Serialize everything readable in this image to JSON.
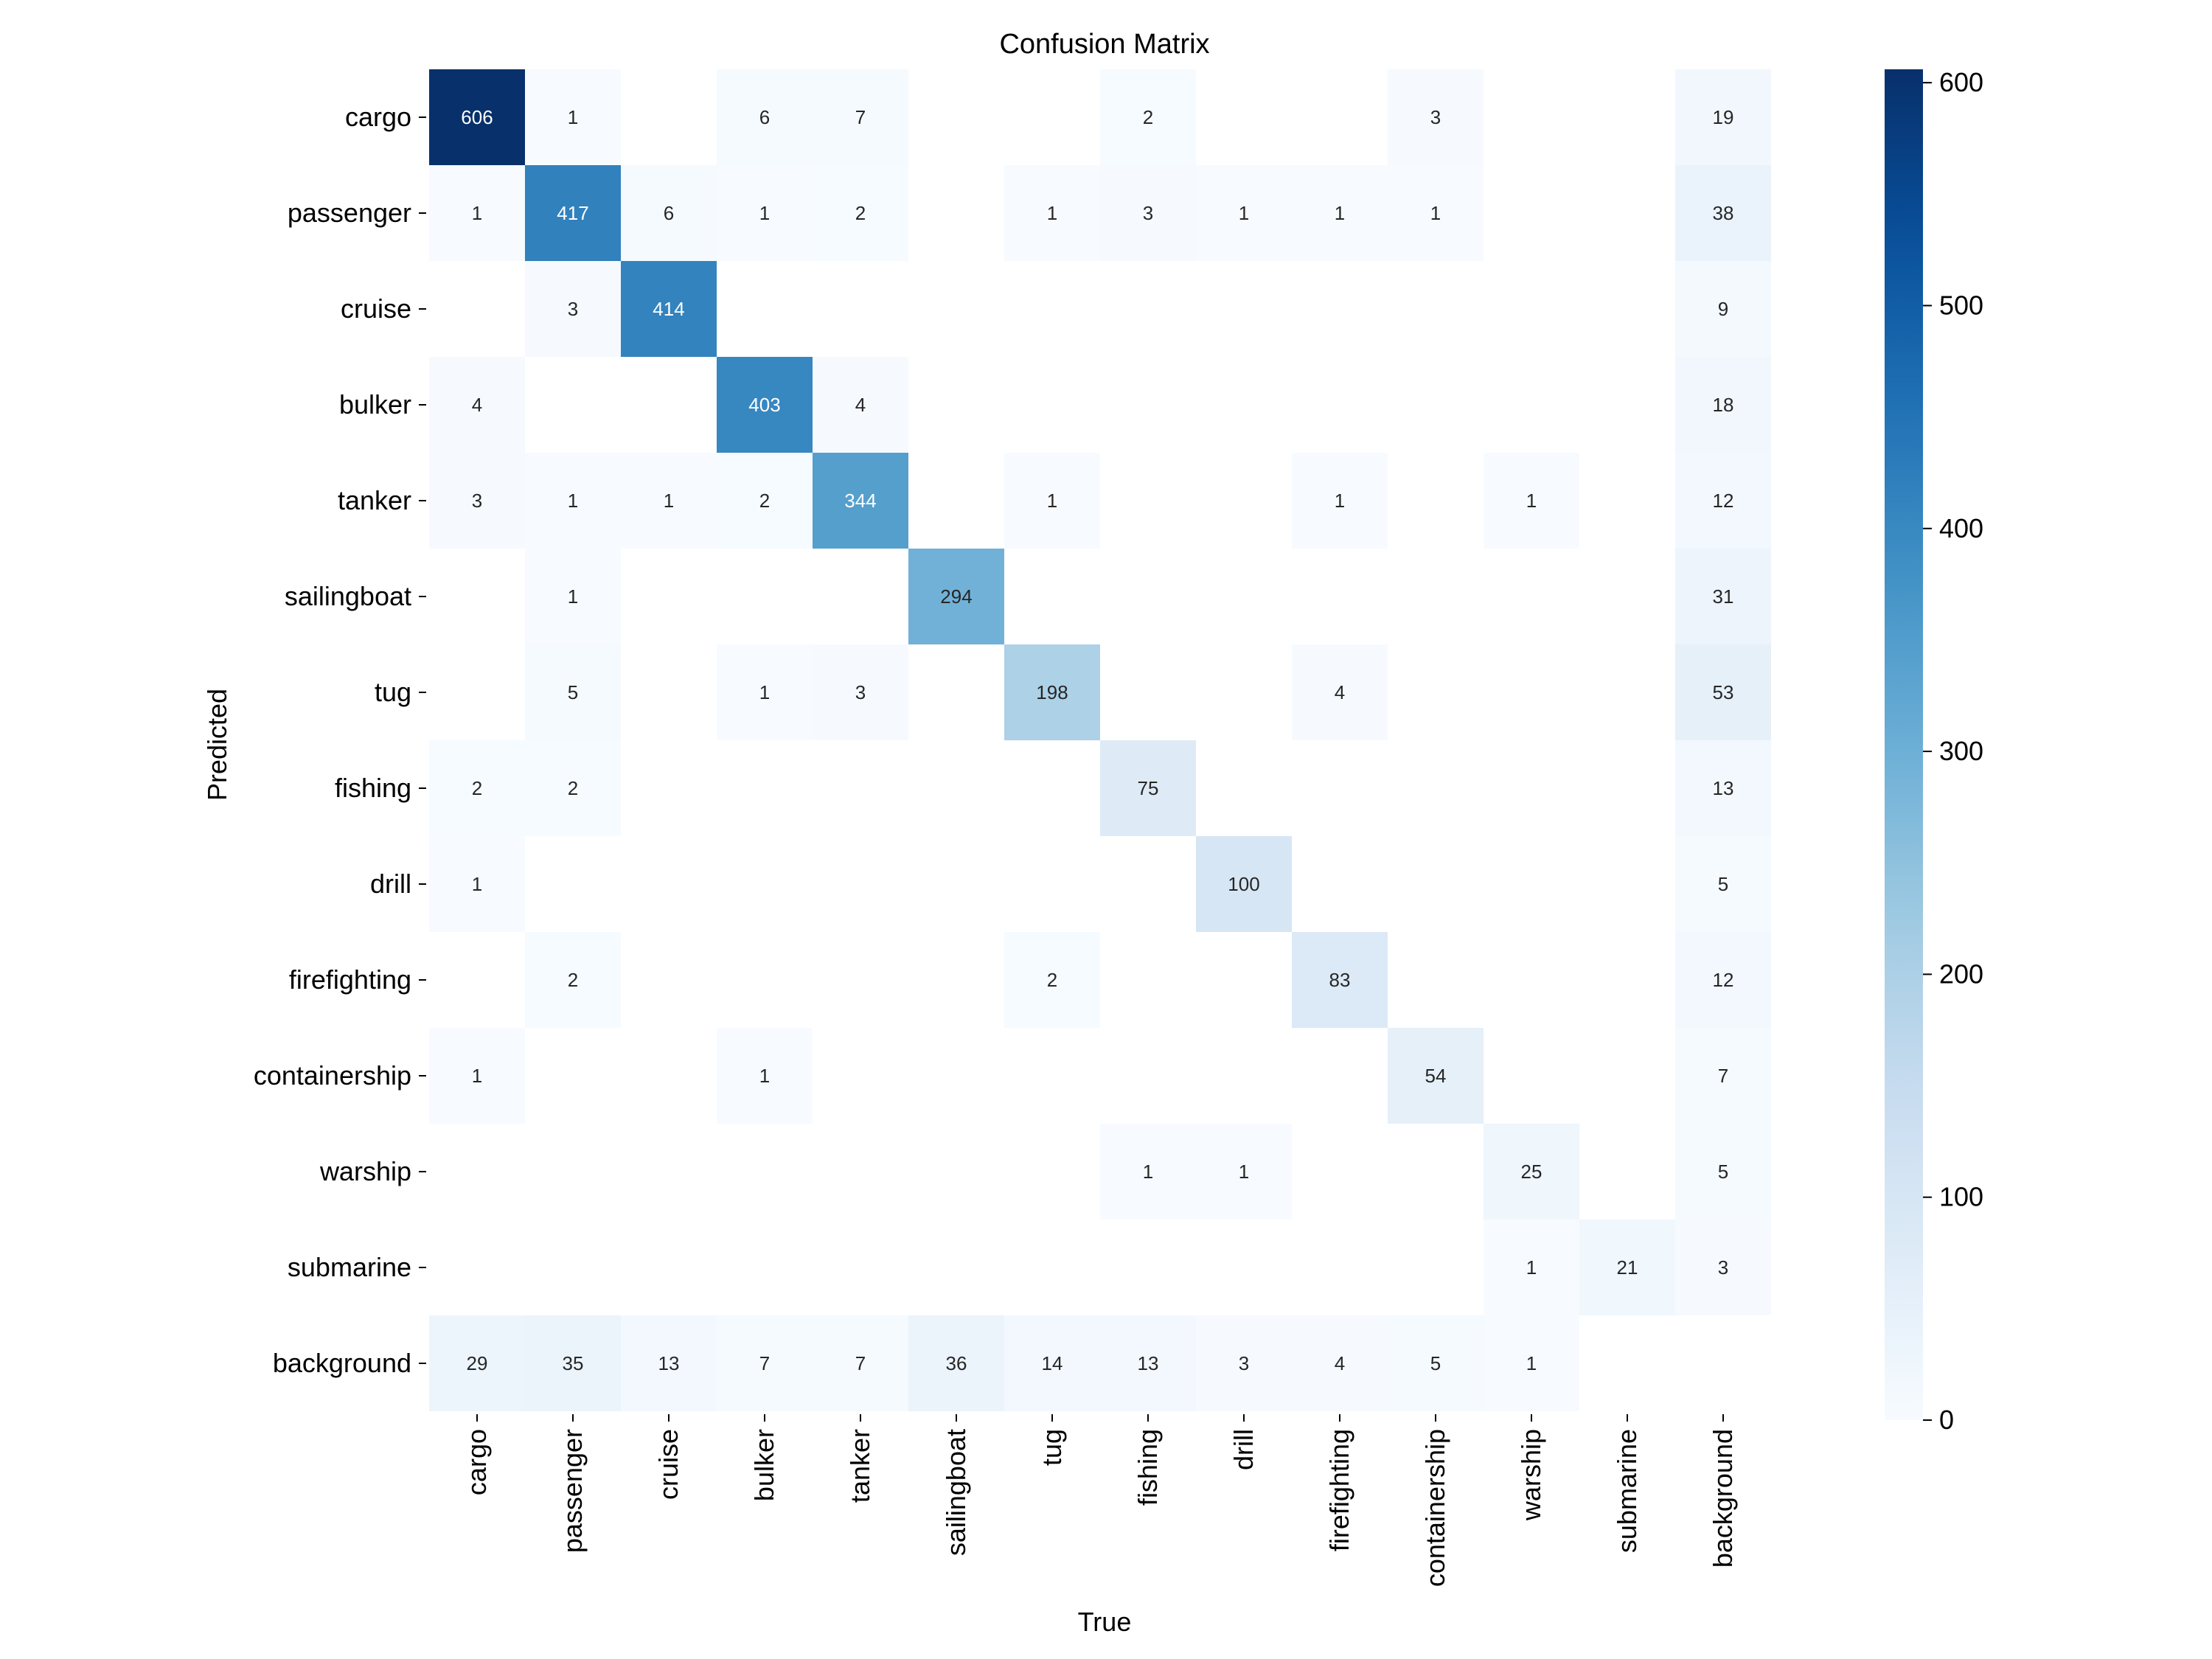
{
  "chart_data": {
    "type": "heatmap",
    "title": "Confusion Matrix",
    "xlabel": "True",
    "ylabel": "Predicted",
    "x_categories": [
      "cargo",
      "passenger",
      "cruise",
      "bulker",
      "tanker",
      "sailingboat",
      "tug",
      "fishing",
      "drill",
      "firefighting",
      "containership",
      "warship",
      "submarine",
      "background"
    ],
    "y_categories": [
      "cargo",
      "passenger",
      "cruise",
      "bulker",
      "tanker",
      "sailingboat",
      "tug",
      "fishing",
      "drill",
      "firefighting",
      "containership",
      "warship",
      "submarine",
      "background"
    ],
    "values": [
      [
        606,
        1,
        null,
        6,
        7,
        null,
        null,
        2,
        null,
        null,
        3,
        null,
        null,
        19
      ],
      [
        1,
        417,
        6,
        1,
        2,
        null,
        1,
        3,
        1,
        1,
        1,
        null,
        null,
        38
      ],
      [
        null,
        3,
        414,
        null,
        null,
        null,
        null,
        null,
        null,
        null,
        null,
        null,
        null,
        9
      ],
      [
        4,
        null,
        null,
        403,
        4,
        null,
        null,
        null,
        null,
        null,
        null,
        null,
        null,
        18
      ],
      [
        3,
        1,
        1,
        2,
        344,
        null,
        1,
        null,
        null,
        1,
        null,
        1,
        null,
        12
      ],
      [
        null,
        1,
        null,
        null,
        null,
        294,
        null,
        null,
        null,
        null,
        null,
        null,
        null,
        31
      ],
      [
        null,
        5,
        null,
        1,
        3,
        null,
        198,
        null,
        null,
        4,
        null,
        null,
        null,
        53
      ],
      [
        2,
        2,
        null,
        null,
        null,
        null,
        null,
        75,
        null,
        null,
        null,
        null,
        null,
        13
      ],
      [
        1,
        null,
        null,
        null,
        null,
        null,
        null,
        null,
        100,
        null,
        null,
        null,
        null,
        5
      ],
      [
        null,
        2,
        null,
        null,
        null,
        null,
        2,
        null,
        null,
        83,
        null,
        null,
        null,
        12
      ],
      [
        1,
        null,
        null,
        1,
        null,
        null,
        null,
        null,
        null,
        null,
        54,
        null,
        null,
        7
      ],
      [
        null,
        null,
        null,
        null,
        null,
        null,
        null,
        1,
        1,
        null,
        null,
        25,
        null,
        5
      ],
      [
        null,
        null,
        null,
        null,
        null,
        null,
        null,
        null,
        null,
        null,
        null,
        1,
        21,
        3
      ],
      [
        29,
        35,
        13,
        7,
        7,
        36,
        14,
        13,
        3,
        4,
        5,
        1,
        null,
        null
      ]
    ],
    "colorbar": {
      "range": [
        0,
        606
      ],
      "ticks": [
        0,
        100,
        200,
        300,
        400,
        500,
        600
      ],
      "colormap": "Blues"
    }
  }
}
